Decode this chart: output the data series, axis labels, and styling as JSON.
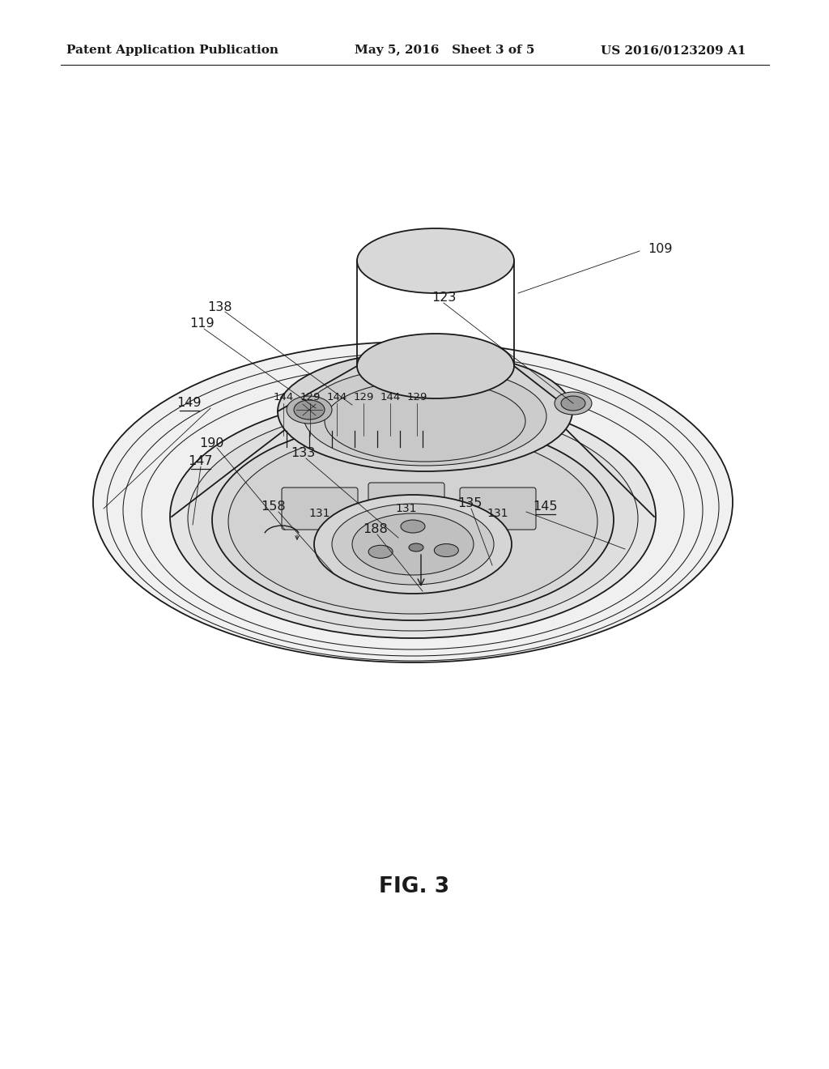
{
  "background_color": "#ffffff",
  "header_left": "Patent Application Publication",
  "header_mid": "May 5, 2016   Sheet 3 of 5",
  "header_right": "US 2016/0123209 A1",
  "figure_label": "FIG. 3",
  "color": "#1a1a1a",
  "lw_main": 1.3,
  "lw_thin": 0.75
}
